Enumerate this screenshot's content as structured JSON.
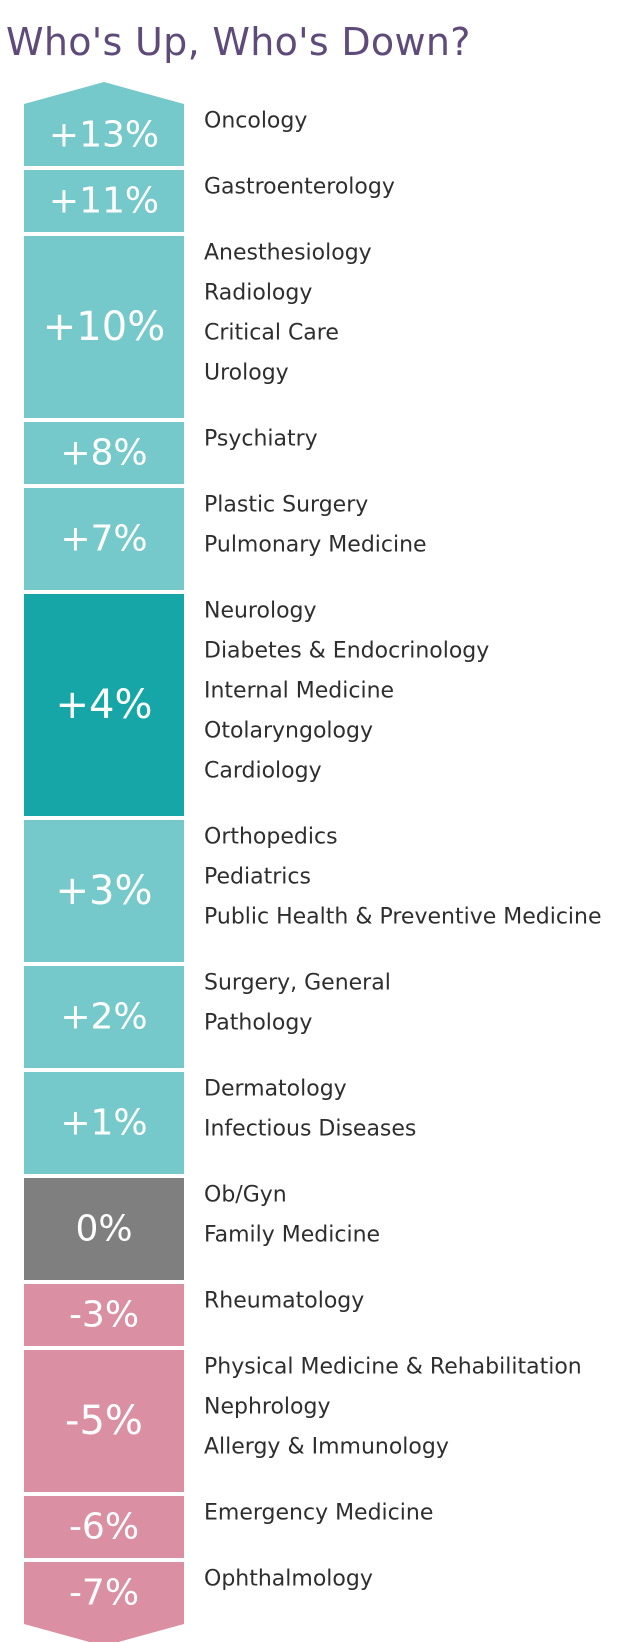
{
  "chart_data": {
    "type": "bar",
    "title": "Who's Up, Who's Down?",
    "colors": {
      "title": "#5e4b7a",
      "up": "#76c9cb",
      "up_highlight": "#16a6a8",
      "neutral": "#7f7f7f",
      "down": "#db8fa2",
      "label": "#2e2e2e",
      "highlight_label": "#c94f6d"
    },
    "groups": [
      {
        "value": 13,
        "label": "+13%",
        "specialties": [
          "Oncology"
        ]
      },
      {
        "value": 11,
        "label": "+11%",
        "specialties": [
          "Gastroenterology"
        ]
      },
      {
        "value": 10,
        "label": "+10%",
        "specialties": [
          "Anesthesiology",
          "Radiology",
          "Critical Care",
          "Urology"
        ]
      },
      {
        "value": 8,
        "label": "+8%",
        "specialties": [
          "Psychiatry"
        ]
      },
      {
        "value": 7,
        "label": "+7%",
        "specialties": [
          "Plastic Surgery",
          "Pulmonary Medicine"
        ]
      },
      {
        "value": 4,
        "label": "+4%",
        "highlight": true,
        "specialties": [
          "Neurology",
          "Diabetes & Endocrinology",
          "Internal Medicine",
          "Otolaryngology",
          "Cardiology"
        ],
        "highlight_specialty": "Cardiology"
      },
      {
        "value": 3,
        "label": "+3%",
        "specialties": [
          "Orthopedics",
          "Pediatrics",
          "Public Health & Preventive Medicine"
        ]
      },
      {
        "value": 2,
        "label": "+2%",
        "specialties": [
          "Surgery, General",
          "Pathology"
        ]
      },
      {
        "value": 1,
        "label": "+1%",
        "specialties": [
          "Dermatology",
          "Infectious Diseases"
        ]
      },
      {
        "value": 0,
        "label": "0%",
        "specialties": [
          "Ob/Gyn",
          "Family Medicine"
        ]
      },
      {
        "value": -3,
        "label": "-3%",
        "specialties": [
          "Rheumatology"
        ]
      },
      {
        "value": -5,
        "label": "-5%",
        "specialties": [
          "Physical Medicine & Rehabilitation",
          "Nephrology",
          "Allergy & Immunology"
        ]
      },
      {
        "value": -6,
        "label": "-6%",
        "specialties": [
          "Emergency Medicine"
        ]
      },
      {
        "value": -7,
        "label": "-7%",
        "specialties": [
          "Ophthalmology"
        ]
      }
    ]
  }
}
